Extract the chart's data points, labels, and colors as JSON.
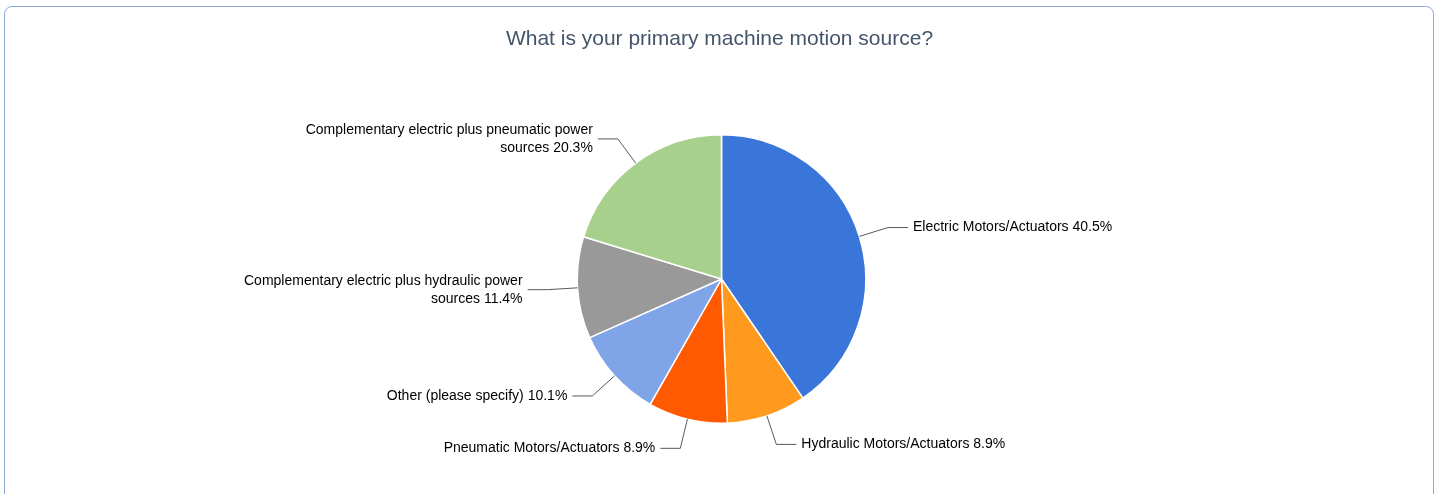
{
  "chart_data": {
    "type": "pie",
    "title": "What is your primary machine motion source?",
    "categories": [
      "Electric Motors/Actuators",
      "Hydraulic Motors/Actuators",
      "Pneumatic Motors/Actuators",
      "Other (please specify)",
      "Complementary electric plus hydraulic power sources",
      "Complementary electric plus pneumatic power sources"
    ],
    "values": [
      40.5,
      8.9,
      8.9,
      10.1,
      11.4,
      20.3
    ],
    "value_labels": [
      "40.5%",
      "8.9%",
      "8.9%",
      "10.1%",
      "11.4%",
      "20.3%"
    ],
    "colors": [
      "#3a75d9",
      "#ff9a1f",
      "#ff5a00",
      "#7fa5e8",
      "#999999",
      "#a8d08d"
    ],
    "legend": false
  }
}
